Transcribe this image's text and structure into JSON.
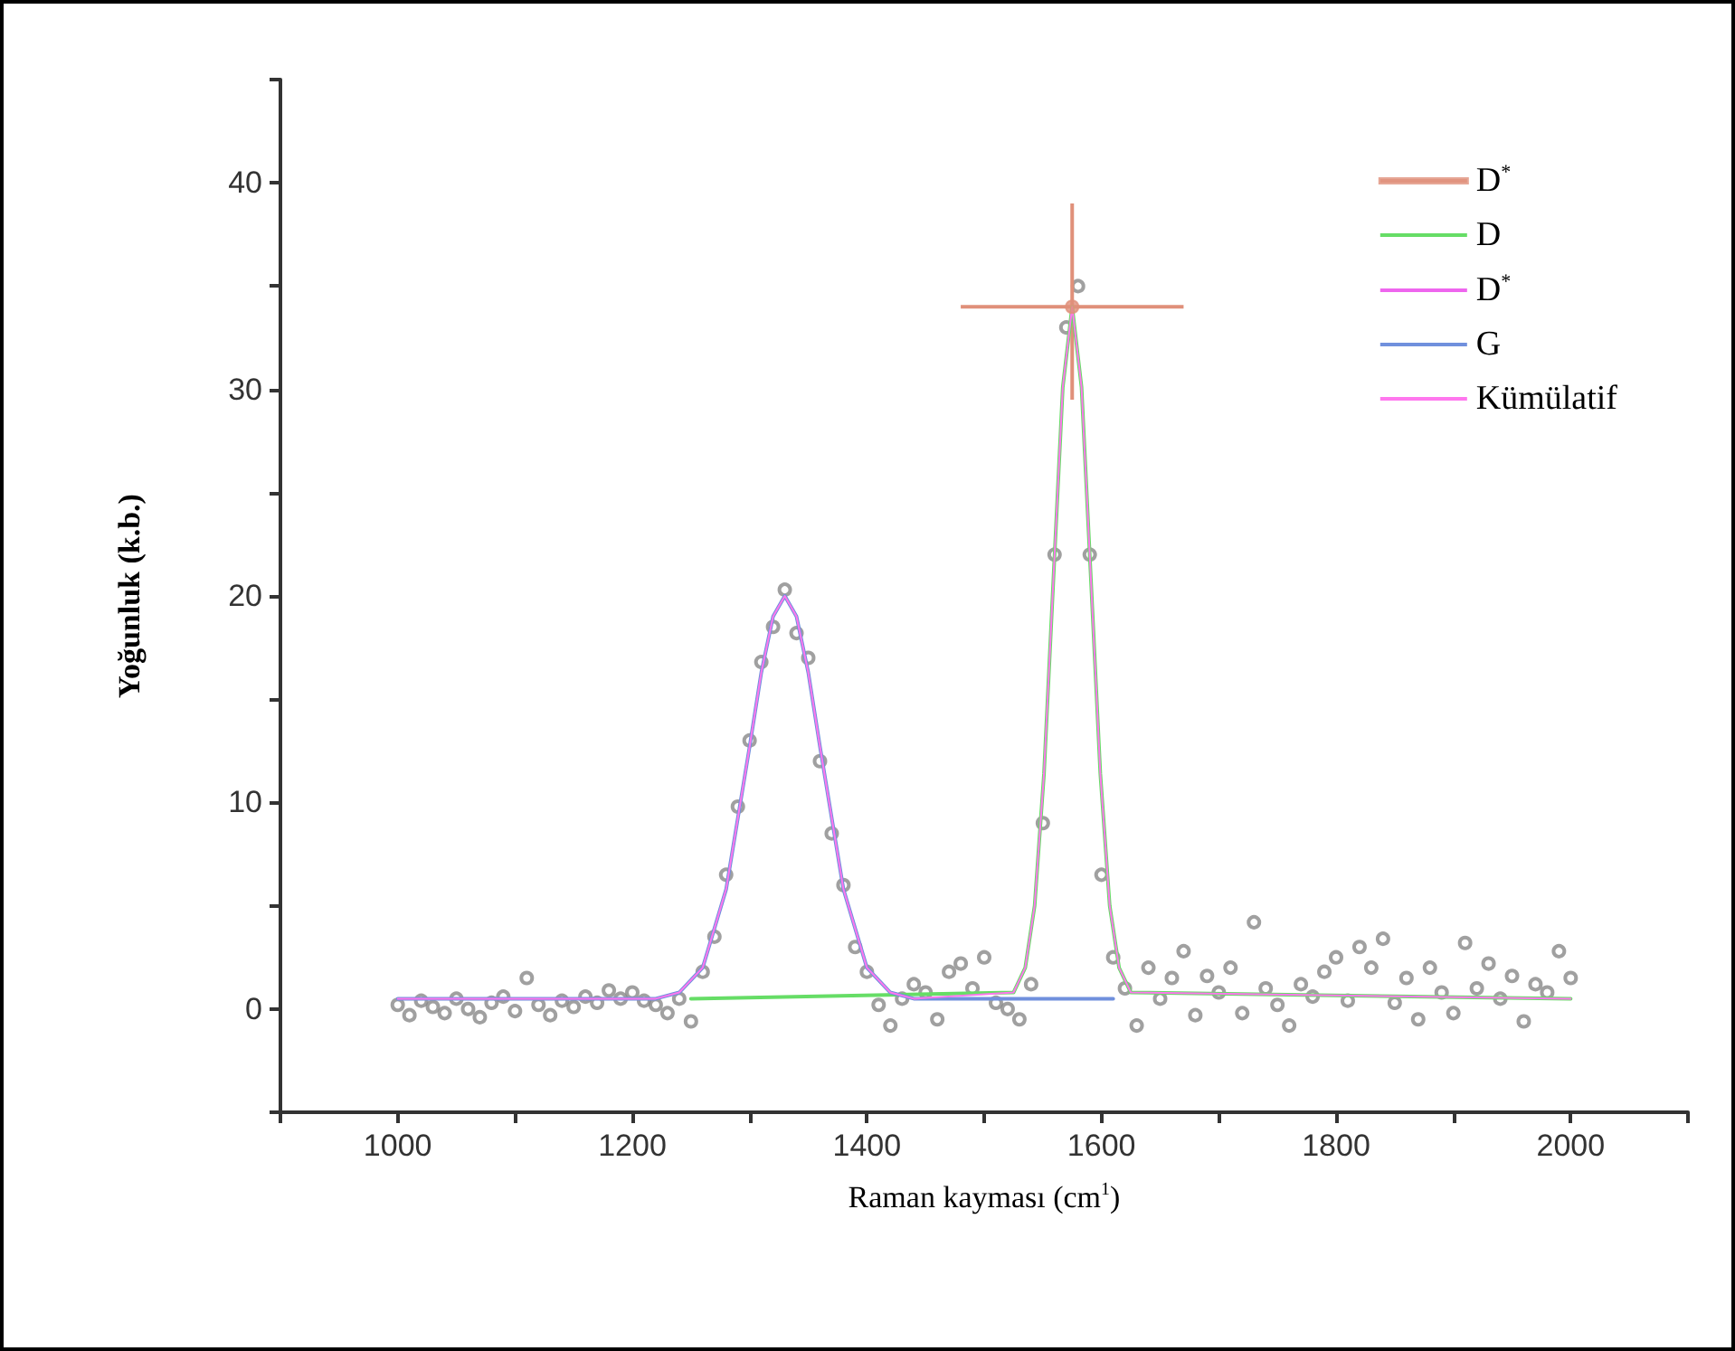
{
  "chart_data": {
    "type": "line",
    "xlabel": "Raman kayması (cm$^{1}$)",
    "ylabel": "Yoğunluk (k.b.)",
    "xlim": [
      900,
      2100
    ],
    "xticks": [
      {
        "value": 900,
        "label": null
      },
      1000,
      {
        "value": 1100,
        "label": null
      },
      1200,
      {
        "value": 1300,
        "label": null
      },
      1400,
      {
        "value": 1500,
        "label": null
      },
      1600,
      {
        "value": 1700,
        "label": null
      },
      1800,
      {
        "value": 1900,
        "label": null
      },
      2000,
      {
        "value": 2100,
        "label": null
      }
    ],
    "ylim": [
      -5,
      45
    ],
    "yticks": [
      {
        "value": -5,
        "label": null
      },
      0,
      {
        "value": 5,
        "label": null
      },
      10,
      {
        "value": 15,
        "label": null
      },
      20,
      {
        "value": 25,
        "label": null
      },
      30,
      {
        "value": 35,
        "label": null
      },
      40,
      {
        "value": 45,
        "label": null
      }
    ],
    "grid": false,
    "legend": "top right",
    "line_style": "solid",
    "marker": "none",
    "series": [
      {
        "type": "scatter",
        "marker": "circle",
        "color": "#888888",
        "x": [
          1000,
          1010,
          1020,
          1030,
          1040,
          1050,
          1060,
          1070,
          1080,
          1090,
          1100,
          1110,
          1120,
          1130,
          1140,
          1150,
          1160,
          1170,
          1180,
          1190,
          1200,
          1210,
          1220,
          1230,
          1240,
          1250,
          1260,
          1270,
          1280,
          1290,
          1300,
          1310,
          1320,
          1330,
          1340,
          1350,
          1360,
          1370,
          1380,
          1390,
          1400,
          1410,
          1420,
          1430,
          1440,
          1450,
          1460,
          1470,
          1480,
          1490,
          1500,
          1510,
          1520,
          1530,
          1540,
          1550,
          1560,
          1570,
          1580,
          1590,
          1600,
          1610,
          1620,
          1630,
          1640,
          1650,
          1660,
          1670,
          1680,
          1690,
          1700,
          1710,
          1720,
          1730,
          1740,
          1750,
          1760,
          1770,
          1780,
          1790,
          1800,
          1810,
          1820,
          1830,
          1840,
          1850,
          1860,
          1870,
          1880,
          1890,
          1900,
          1910,
          1920,
          1930,
          1940,
          1950,
          1960,
          1970,
          1980,
          1990,
          2000
        ],
        "values": [
          0.2,
          -0.3,
          0.4,
          0.1,
          -0.2,
          0.5,
          0.0,
          -0.4,
          0.3,
          0.6,
          -0.1,
          1.5,
          0.2,
          -0.3,
          0.4,
          0.1,
          0.6,
          0.3,
          0.9,
          0.5,
          0.8,
          0.4,
          0.2,
          -0.2,
          0.5,
          -0.6,
          1.8,
          3.5,
          6.5,
          9.8,
          13.0,
          16.8,
          18.5,
          20.3,
          18.2,
          17.0,
          12.0,
          8.5,
          6.0,
          3.0,
          1.8,
          0.2,
          -0.8,
          0.5,
          1.2,
          0.8,
          -0.5,
          1.8,
          2.2,
          1.0,
          2.5,
          0.3,
          0.0,
          -0.5,
          1.2,
          9.0,
          22.0,
          33.0,
          35.0,
          22.0,
          6.5,
          2.5,
          1.0,
          -0.8,
          2.0,
          0.5,
          1.5,
          2.8,
          -0.3,
          1.6,
          0.8,
          2.0,
          -0.2,
          4.2,
          1.0,
          0.2,
          -0.8,
          1.2,
          0.6,
          1.8,
          2.5,
          0.4,
          3.0,
          2.0,
          3.4,
          0.3,
          1.5,
          -0.5,
          2.0,
          0.8,
          -0.2,
          3.2,
          1.0,
          2.2,
          0.5,
          1.6,
          -0.6,
          1.2,
          0.8,
          2.8,
          1.5
        ]
      },
      {
        "name": "D$^{*}$",
        "type": "scatter",
        "marker": "circle",
        "color": "#e0907a",
        "x": [
          1575
        ],
        "values": [
          34
        ],
        "errors": [
          [
            29.5,
            39
          ]
        ],
        "xerrors": [
          [
            1480,
            1670
          ]
        ]
      },
      {
        "name": "D",
        "color": "#66dd66",
        "x": [
          1250,
          1525,
          1535,
          1543,
          1551,
          1559,
          1567,
          1575,
          1583,
          1591,
          1599,
          1607,
          1615,
          1625,
          2000
        ],
        "values": [
          0.5,
          0.8,
          2.0,
          5.0,
          11.4,
          20.8,
          30.1,
          34.0,
          30.1,
          20.8,
          11.4,
          5.0,
          2.0,
          0.8,
          0.5
        ]
      },
      {
        "name": "D$^{*}$",
        "color": "#ee66ee"
      },
      {
        "name": "G",
        "color": "#7090dd",
        "x": [
          1000,
          1220,
          1240,
          1260,
          1280,
          1300,
          1310,
          1320,
          1330,
          1340,
          1350,
          1360,
          1380,
          1400,
          1420,
          1440,
          1610
        ],
        "values": [
          0.5,
          0.5,
          0.8,
          2.0,
          5.8,
          12.7,
          16.3,
          19.0,
          20.0,
          19.0,
          16.3,
          12.7,
          5.8,
          2.0,
          0.8,
          0.5,
          0.5
        ]
      },
      {
        "name": "Kümülatif",
        "color": "#ff77ee",
        "x": [
          1000,
          1220,
          1240,
          1260,
          1280,
          1300,
          1310,
          1320,
          1330,
          1340,
          1350,
          1360,
          1380,
          1400,
          1420,
          1440,
          1525,
          1535,
          1543,
          1551,
          1559,
          1567,
          1575,
          1583,
          1591,
          1599,
          1607,
          1615,
          1625,
          2000
        ],
        "values": [
          0.5,
          0.5,
          0.8,
          2.0,
          5.8,
          12.7,
          16.3,
          19.0,
          20.0,
          19.0,
          16.3,
          12.7,
          5.8,
          2.0,
          0.8,
          0.5,
          0.8,
          2.0,
          5.0,
          11.4,
          20.8,
          30.1,
          34.0,
          30.1,
          20.8,
          11.4,
          5.0,
          2.0,
          0.8,
          0.5
        ]
      }
    ]
  }
}
